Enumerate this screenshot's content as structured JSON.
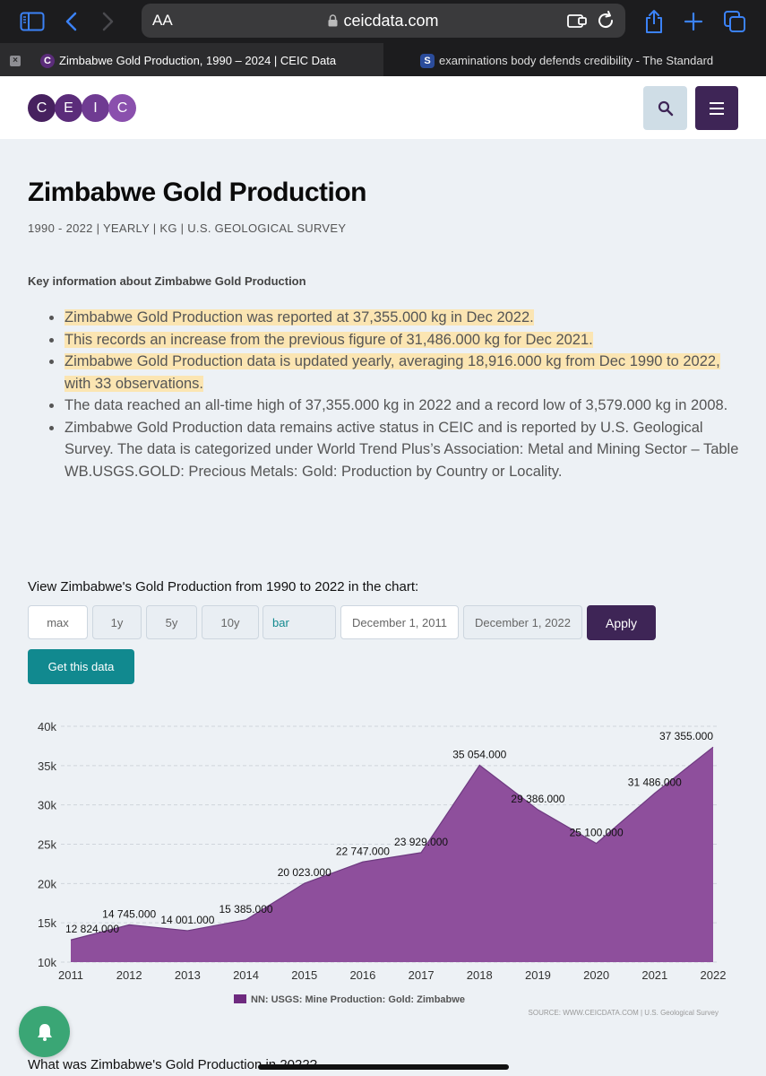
{
  "browser": {
    "text_size_label": "AA",
    "url": "ceicdata.com",
    "tabs": [
      {
        "title": "Zimbabwe Gold Production, 1990 – 2024 | CEIC Data",
        "favicon": "C"
      },
      {
        "title": "examinations body defends credibility - The Standard",
        "favicon": "S"
      }
    ]
  },
  "site": {
    "logo_letters": [
      "C",
      "E",
      "I",
      "C"
    ]
  },
  "page": {
    "title": "Zimbabwe Gold Production",
    "meta": "1990 - 2022 | YEARLY | KG | U.S. GEOLOGICAL SURVEY",
    "key_heading": "Key information about Zimbabwe Gold Production",
    "bullets": [
      "Zimbabwe Gold Production was reported at 37,355.000 kg in Dec 2022.",
      "This records an increase from the previous figure of 31,486.000 kg for Dec 2021.",
      "Zimbabwe Gold Production data is updated yearly, averaging 18,916.000 kg from Dec 1990 to 2022, with 33 observations.",
      "The data reached an all-time high of 37,355.000 kg in 2022 and a record low of 3,579.000 kg in 2008.",
      "Zimbabwe Gold Production data remains active status in CEIC and is reported by U.S. Geological Survey. The data is categorized under World Trend Plus’s Association: Metal and Mining Sector – Table WB.USGS.GOLD: Precious Metals: Gold: Production by Country or Locality."
    ],
    "view_label": "View Zimbabwe's Gold Production from 1990 to 2022 in the chart:",
    "controls": {
      "max": "max",
      "y1": "1y",
      "y5": "5y",
      "y10": "10y",
      "chart_type": "bar",
      "start_date": "December 1, 2011",
      "end_date": "December 1, 2022",
      "apply": "Apply",
      "get_data": "Get this data"
    },
    "question": "What was Zimbabwe's Gold Production in 2022?"
  },
  "chart_data": {
    "type": "area",
    "x": [
      "2011",
      "2012",
      "2013",
      "2014",
      "2015",
      "2016",
      "2017",
      "2018",
      "2019",
      "2020",
      "2021",
      "2022"
    ],
    "series": [
      {
        "name": "NN: USGS: Mine Production: Gold: Zimbabwe",
        "values": [
          12824,
          14745,
          14001,
          15385,
          20023,
          22747,
          23929,
          35054,
          29386,
          25100,
          31486,
          37355
        ],
        "labels": [
          "12 824.000",
          "14 745.000",
          "14 001.000",
          "15 385.000",
          "20 023.000",
          "22 747.000",
          "23 929.000",
          "35 054.000",
          "29 386.000",
          "25 100.000",
          "31 486.000",
          "37 355.000"
        ]
      }
    ],
    "y_ticks": [
      "10k",
      "15k",
      "20k",
      "25k",
      "30k",
      "35k",
      "40k"
    ],
    "ylim": [
      10000,
      40000
    ],
    "legend": "NN: USGS: Mine Production: Gold: Zimbabwe",
    "source": "SOURCE: WWW.CEICDATA.COM | U.S. Geological Survey",
    "color": "#8e4f9c"
  }
}
